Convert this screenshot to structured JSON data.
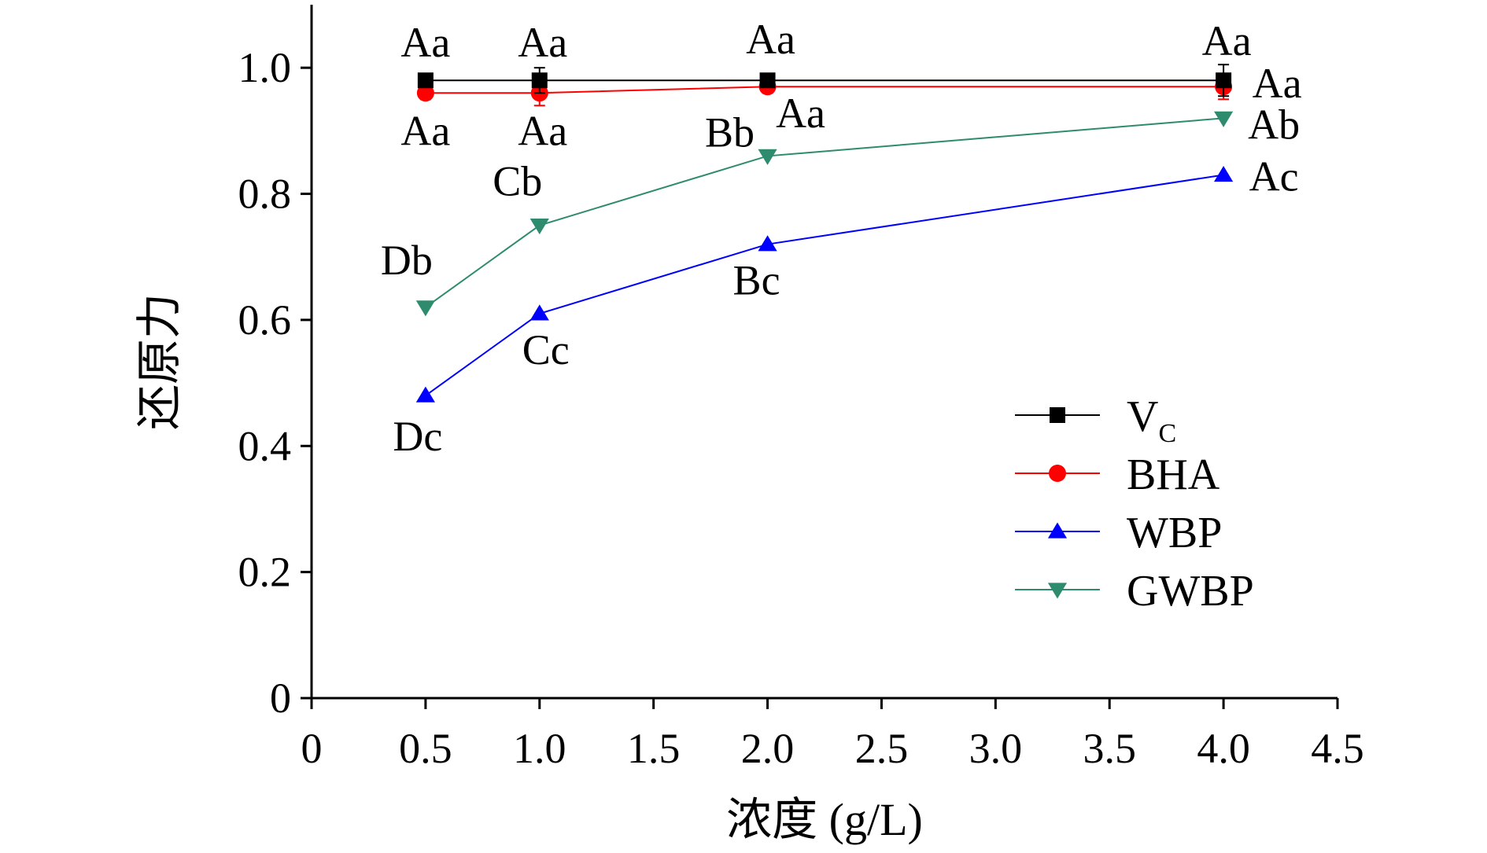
{
  "chart_data": {
    "type": "line",
    "xlabel": "浓度 (g/L)",
    "ylabel": "还原力",
    "xlim": [
      0,
      4.5
    ],
    "ylim": [
      0,
      1.1
    ],
    "xticks": [
      0,
      0.5,
      1.0,
      1.5,
      2.0,
      2.5,
      3.0,
      3.5,
      4.0,
      4.5
    ],
    "xtick_labels": [
      "0",
      "0.5",
      "1.0",
      "1.5",
      "2.0",
      "2.5",
      "3.0",
      "3.5",
      "4.0",
      "4.5"
    ],
    "yticks": [
      0,
      0.2,
      0.4,
      0.6,
      0.8,
      1.0
    ],
    "ytick_labels": [
      "0",
      "0.2",
      "0.4",
      "0.6",
      "0.8",
      "1.0"
    ],
    "grid": false,
    "legend_position": "right",
    "x": [
      0.5,
      1.0,
      2.0,
      4.0
    ],
    "series": [
      {
        "key": "vc",
        "name": "V",
        "name_sub": "C",
        "color": "#000000",
        "marker": "square",
        "values": [
          0.98,
          0.98,
          0.98,
          0.98
        ],
        "error": [
          0.0,
          0.02,
          0.01,
          0.025
        ],
        "labels": [
          "Aa",
          "Aa",
          "Aa",
          "Aa"
        ],
        "label_pos": "above"
      },
      {
        "key": "bha",
        "name": "BHA",
        "color": "#ff0000",
        "marker": "circle",
        "values": [
          0.96,
          0.96,
          0.97,
          0.97
        ],
        "error": [
          0.01,
          0.02,
          0.01,
          0.02
        ],
        "labels": [
          "Aa",
          "Aa",
          "Aa",
          "Aa"
        ],
        "label_pos": "below"
      },
      {
        "key": "wbp",
        "name": "WBP",
        "color": "#0000ff",
        "marker": "triangle-up",
        "values": [
          0.48,
          0.61,
          0.72,
          0.83
        ],
        "error": [
          0,
          0,
          0,
          0
        ],
        "labels": [
          "Dc",
          "Cc",
          "Bc",
          "Ac"
        ],
        "label_pos": "below"
      },
      {
        "key": "gwbp",
        "name": "GWBP",
        "color": "#2e8b6e",
        "marker": "triangle-down",
        "values": [
          0.62,
          0.75,
          0.86,
          0.92
        ],
        "error": [
          0,
          0,
          0,
          0
        ],
        "labels": [
          "Db",
          "Cb",
          "Bb",
          "Ab"
        ],
        "label_pos": "above"
      }
    ]
  }
}
